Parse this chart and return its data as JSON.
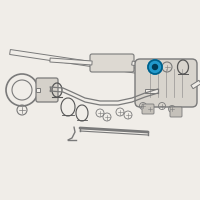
{
  "bg_color": "#f0ede8",
  "line_color": "#7a7a7a",
  "dark_color": "#555555",
  "highlight_color": "#2299cc",
  "fig_width": 2.0,
  "fig_height": 2.0,
  "dpi": 100,
  "xlim": [
    0,
    200
  ],
  "ylim": [
    0,
    200
  ]
}
